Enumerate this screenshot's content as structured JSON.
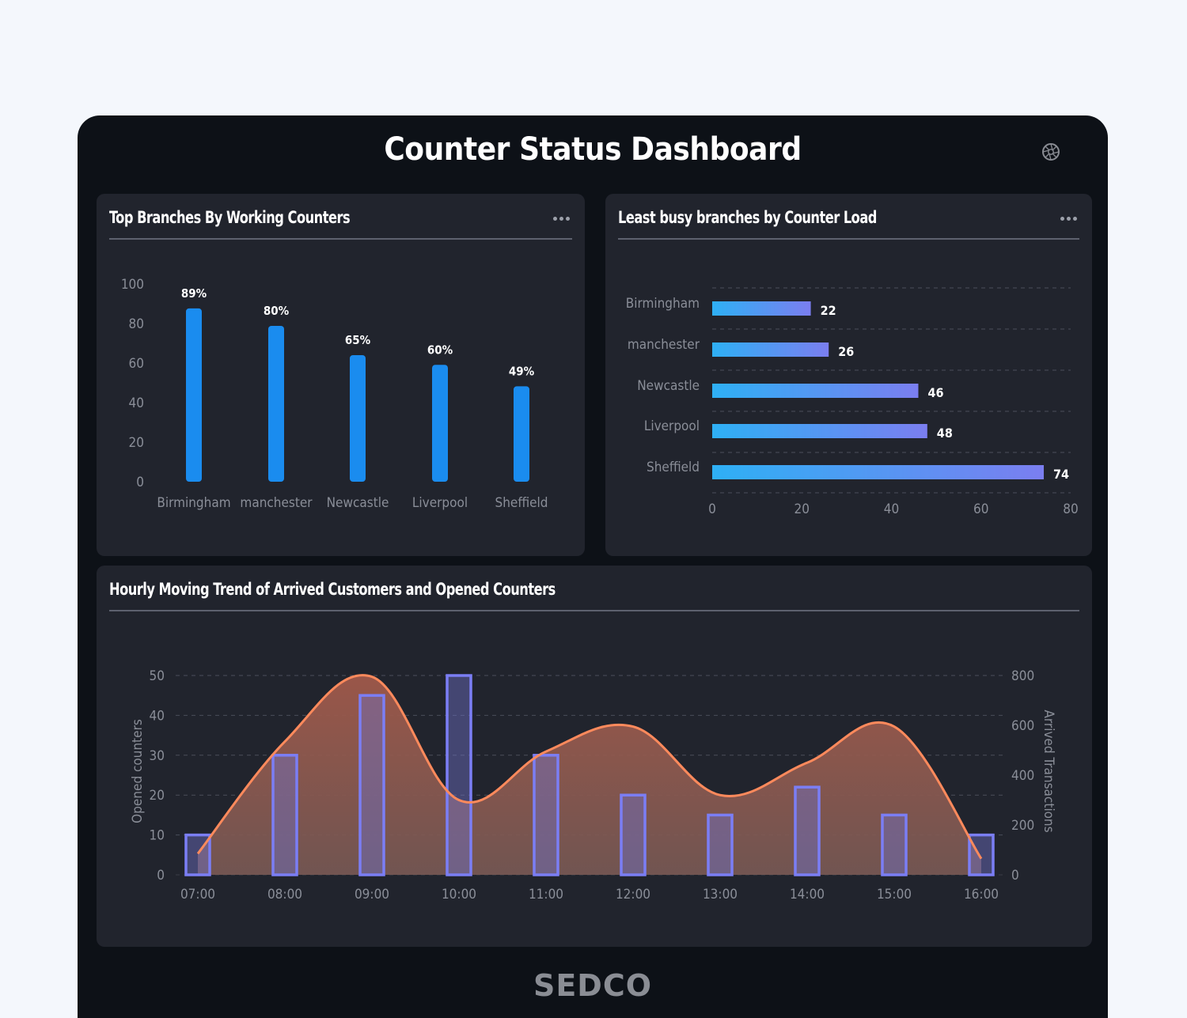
{
  "header": {
    "title": "Counter Status Dashboard",
    "icon": "shutter-icon"
  },
  "panels": {
    "top_branches": {
      "title": "Top Branches By Working Counters",
      "menu_icon": "more-horizontal-icon"
    },
    "least_busy": {
      "title": "Least busy branches by Counter Load",
      "menu_icon": "more-horizontal-icon"
    },
    "hourly_trend": {
      "title": "Hourly Moving Trend of Arrived Customers and Opened Counters"
    }
  },
  "footer": {
    "logo": "SEDCO"
  },
  "colors": {
    "page_bg": "#f4f7fc",
    "dashboard_bg": "#0d1117",
    "panel_bg": "#21242d",
    "bar_blue": "#1a8cef",
    "hbar_gradient_start": "#2eb0f5",
    "hbar_gradient_end": "#7b7ef0",
    "line_orange": "#ff8a5c",
    "area_fill": "#8a5746",
    "column_outline": "#7b7ef5",
    "axis_text": "#8a8e98"
  },
  "chart_data": [
    {
      "type": "bar",
      "title": "Top Branches By Working Counters",
      "categories": [
        "Birmingham",
        "manchester",
        "Newcastle",
        "Liverpool",
        "Sheffield"
      ],
      "values": [
        89,
        80,
        65,
        60,
        49
      ],
      "value_labels": [
        "89%",
        "80%",
        "65%",
        "60%",
        "49%"
      ],
      "xlabel": "",
      "ylabel": "",
      "ylim": [
        0,
        100
      ],
      "yticks": [
        0,
        20,
        40,
        60,
        80,
        100
      ],
      "grid": false,
      "legend": null
    },
    {
      "type": "bar",
      "orientation": "horizontal",
      "title": "Least busy branches by Counter Load",
      "categories": [
        "Birmingham",
        "manchester",
        "Newcastle",
        "Liverpool",
        "Sheffield"
      ],
      "values": [
        22,
        26,
        46,
        48,
        74
      ],
      "value_labels": [
        "22",
        "26",
        "46",
        "48",
        "74"
      ],
      "xlabel": "",
      "ylabel": "",
      "xlim": [
        0,
        80
      ],
      "xticks": [
        0,
        20,
        40,
        60,
        80
      ],
      "grid": "dashed horizontal",
      "legend": null
    },
    {
      "type": "bar+area",
      "title": "Hourly Moving Trend of Arrived Customers and Opened Counters",
      "categories": [
        "07:00",
        "08:00",
        "09:00",
        "10:00",
        "11:00",
        "12:00",
        "13:00",
        "14:00",
        "15:00",
        "16:00"
      ],
      "series": [
        {
          "name": "Opened counters",
          "type": "bar",
          "axis": "left",
          "values": [
            10,
            30,
            45,
            50,
            30,
            20,
            15,
            22,
            15,
            10
          ]
        },
        {
          "name": "Arrived Transactions",
          "type": "area",
          "axis": "right",
          "values": [
            85,
            535,
            795,
            300,
            495,
            595,
            320,
            450,
            595,
            65
          ]
        }
      ],
      "ylabel": "Opened counters",
      "ylabel_right": "Arrived Transactions",
      "ylim": [
        0,
        50
      ],
      "yticks": [
        0,
        10,
        20,
        30,
        40,
        50
      ],
      "ylim_right": [
        0,
        800
      ],
      "yticks_right": [
        0,
        200,
        400,
        600,
        800
      ],
      "grid": "dashed horizontal",
      "legend": null
    }
  ]
}
